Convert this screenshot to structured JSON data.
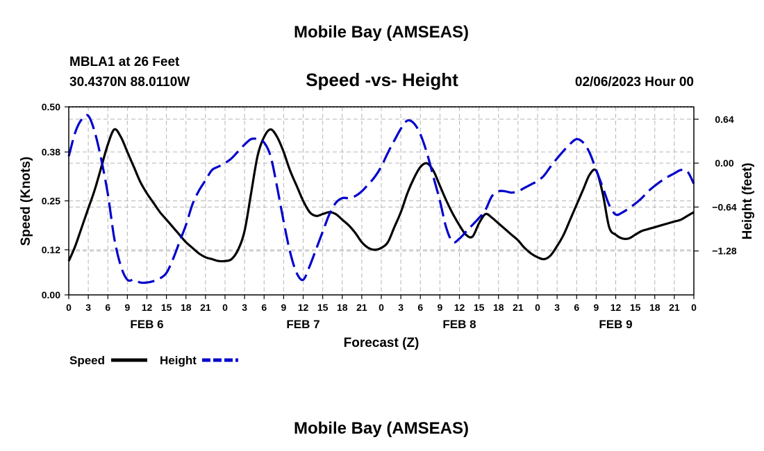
{
  "header": {
    "title": "Mobile Bay (AMSEAS)",
    "station_line": "MBLA1 at 26 Feet",
    "coords_line": "30.4370N  88.0110W",
    "datetime_line": "02/06/2023 Hour 00"
  },
  "footer": {
    "title": "Mobile Bay (AMSEAS)"
  },
  "chart_data": {
    "type": "line",
    "title": "Speed -vs- Height",
    "xlabel": "Forecast (Z)",
    "ylabel": "Speed (Knots)",
    "y2label": "Height (feet)",
    "x_range_hours": [
      0,
      96
    ],
    "x_tick_labels": [
      "0",
      "3",
      "6",
      "9",
      "12",
      "15",
      "18",
      "21",
      "0",
      "3",
      "6",
      "9",
      "12",
      "15",
      "18",
      "21",
      "0",
      "3",
      "6",
      "9",
      "12",
      "15",
      "18",
      "21",
      "0",
      "3",
      "6",
      "9",
      "12",
      "15",
      "18",
      "21",
      "0"
    ],
    "day_labels": [
      {
        "label": "FEB 6",
        "hour": 12
      },
      {
        "label": "FEB 7",
        "hour": 36
      },
      {
        "label": "FEB 8",
        "hour": 60
      },
      {
        "label": "FEB 9",
        "hour": 84
      }
    ],
    "ylim": [
      0,
      0.5
    ],
    "y_ticks": [
      0.0,
      0.12,
      0.25,
      0.38,
      0.5
    ],
    "y_tick_labels": [
      "0.00",
      "0.12",
      "0.25",
      "0.38",
      "0.50"
    ],
    "y2lim": [
      -1.92,
      0.82
    ],
    "y2_ticks": [
      0.64,
      0.0,
      -0.64,
      -1.28
    ],
    "y2_tick_labels": [
      "0.64",
      "0.00",
      "−0.64",
      "−1.28"
    ],
    "grid": true,
    "legend_position": "bottom-left",
    "series": [
      {
        "name": "Speed",
        "axis": "left",
        "color": "#000000",
        "style": "solid",
        "x": [
          0,
          1,
          2,
          3,
          4,
          5,
          6,
          7,
          8,
          9,
          10,
          11,
          12,
          13,
          14,
          15,
          16,
          17,
          18,
          19,
          20,
          21,
          22,
          23,
          24,
          25,
          26,
          27,
          28,
          29,
          30,
          31,
          32,
          33,
          34,
          35,
          36,
          37,
          38,
          39,
          40,
          41,
          42,
          43,
          44,
          45,
          46,
          47,
          48,
          49,
          50,
          51,
          52,
          53,
          54,
          55,
          56,
          57,
          58,
          59,
          60,
          61,
          62,
          63,
          64,
          65,
          66,
          67,
          68,
          69,
          70,
          71,
          72,
          73,
          74,
          75,
          76,
          77,
          78,
          79,
          80,
          81,
          82,
          83,
          84,
          85,
          86,
          87,
          88,
          89,
          90,
          91,
          92,
          93,
          94,
          95,
          96
        ],
        "values": [
          0.09,
          0.13,
          0.18,
          0.23,
          0.28,
          0.34,
          0.4,
          0.44,
          0.42,
          0.38,
          0.34,
          0.3,
          0.27,
          0.245,
          0.22,
          0.2,
          0.18,
          0.16,
          0.14,
          0.125,
          0.11,
          0.1,
          0.095,
          0.09,
          0.09,
          0.095,
          0.12,
          0.17,
          0.27,
          0.37,
          0.42,
          0.44,
          0.42,
          0.38,
          0.33,
          0.29,
          0.25,
          0.22,
          0.21,
          0.215,
          0.22,
          0.215,
          0.2,
          0.185,
          0.165,
          0.14,
          0.125,
          0.12,
          0.125,
          0.14,
          0.18,
          0.22,
          0.27,
          0.31,
          0.34,
          0.35,
          0.33,
          0.29,
          0.25,
          0.215,
          0.185,
          0.16,
          0.155,
          0.19,
          0.215,
          0.205,
          0.19,
          0.175,
          0.16,
          0.145,
          0.125,
          0.11,
          0.1,
          0.095,
          0.105,
          0.13,
          0.16,
          0.2,
          0.24,
          0.28,
          0.32,
          0.33,
          0.27,
          0.18,
          0.16,
          0.15,
          0.15,
          0.16,
          0.17,
          0.175,
          0.18,
          0.185,
          0.19,
          0.195,
          0.2,
          0.21,
          0.22
        ]
      },
      {
        "name": "Height",
        "axis": "right",
        "color": "#0000cc",
        "style": "dashed",
        "x": [
          0,
          1,
          2,
          3,
          4,
          5,
          6,
          7,
          8,
          9,
          10,
          11,
          12,
          13,
          14,
          15,
          16,
          17,
          18,
          19,
          20,
          21,
          22,
          23,
          24,
          25,
          26,
          27,
          28,
          29,
          30,
          31,
          32,
          33,
          34,
          35,
          36,
          37,
          38,
          39,
          40,
          41,
          42,
          43,
          44,
          45,
          46,
          47,
          48,
          49,
          50,
          51,
          52,
          53,
          54,
          55,
          56,
          57,
          58,
          59,
          60,
          61,
          62,
          63,
          64,
          65,
          66,
          67,
          68,
          69,
          70,
          71,
          72,
          73,
          74,
          75,
          76,
          77,
          78,
          79,
          80,
          81,
          82,
          83,
          84,
          85,
          86,
          87,
          88,
          89,
          90,
          91,
          92,
          93,
          94,
          95,
          96
        ],
        "values": [
          0.1,
          0.45,
          0.64,
          0.69,
          0.45,
          0.05,
          -0.45,
          -1.1,
          -1.5,
          -1.7,
          -1.7,
          -1.74,
          -1.74,
          -1.72,
          -1.68,
          -1.6,
          -1.4,
          -1.15,
          -0.9,
          -0.6,
          -0.4,
          -0.25,
          -0.1,
          -0.05,
          0.0,
          0.07,
          0.17,
          0.27,
          0.35,
          0.35,
          0.3,
          0.1,
          -0.35,
          -0.85,
          -1.3,
          -1.6,
          -1.7,
          -1.5,
          -1.25,
          -1.0,
          -0.75,
          -0.58,
          -0.51,
          -0.51,
          -0.48,
          -0.41,
          -0.31,
          -0.2,
          -0.05,
          0.15,
          0.33,
          0.5,
          0.62,
          0.58,
          0.42,
          0.15,
          -0.2,
          -0.55,
          -0.95,
          -1.15,
          -1.1,
          -1.0,
          -0.9,
          -0.8,
          -0.68,
          -0.48,
          -0.41,
          -0.41,
          -0.43,
          -0.41,
          -0.36,
          -0.31,
          -0.26,
          -0.18,
          -0.05,
          0.07,
          0.18,
          0.28,
          0.35,
          0.3,
          0.15,
          -0.1,
          -0.35,
          -0.61,
          -0.75,
          -0.72,
          -0.66,
          -0.59,
          -0.51,
          -0.41,
          -0.33,
          -0.26,
          -0.2,
          -0.15,
          -0.1,
          -0.12,
          -0.3
        ]
      }
    ]
  }
}
